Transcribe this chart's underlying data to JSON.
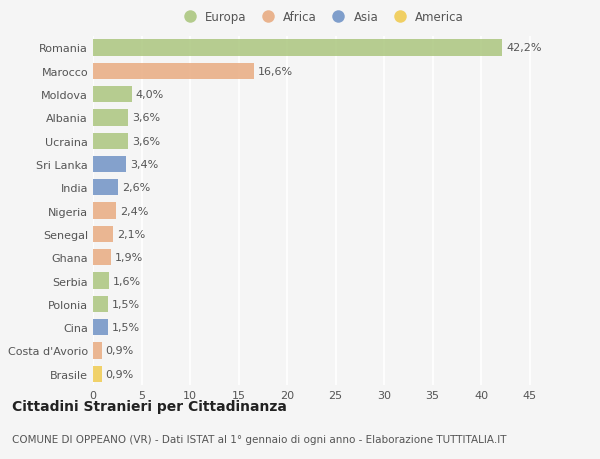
{
  "countries": [
    "Romania",
    "Marocco",
    "Moldova",
    "Albania",
    "Ucraina",
    "Sri Lanka",
    "India",
    "Nigeria",
    "Senegal",
    "Ghana",
    "Serbia",
    "Polonia",
    "Cina",
    "Costa d'Avorio",
    "Brasile"
  ],
  "values": [
    42.2,
    16.6,
    4.0,
    3.6,
    3.6,
    3.4,
    2.6,
    2.4,
    2.1,
    1.9,
    1.6,
    1.5,
    1.5,
    0.9,
    0.9
  ],
  "labels": [
    "42,2%",
    "16,6%",
    "4,0%",
    "3,6%",
    "3,6%",
    "3,4%",
    "2,6%",
    "2,4%",
    "2,1%",
    "1,9%",
    "1,6%",
    "1,5%",
    "1,5%",
    "0,9%",
    "0,9%"
  ],
  "continents": [
    "Europa",
    "Africa",
    "Europa",
    "Europa",
    "Europa",
    "Asia",
    "Asia",
    "Africa",
    "Africa",
    "Africa",
    "Europa",
    "Europa",
    "Asia",
    "Africa",
    "America"
  ],
  "continent_colors": {
    "Europa": "#a8c47a",
    "Africa": "#e8a87c",
    "Asia": "#6b8fc4",
    "America": "#f0c94a"
  },
  "legend_order": [
    "Europa",
    "Africa",
    "Asia",
    "America"
  ],
  "xlim": [
    0,
    47
  ],
  "xticks": [
    0,
    5,
    10,
    15,
    20,
    25,
    30,
    35,
    40,
    45
  ],
  "title": "Cittadini Stranieri per Cittadinanza",
  "subtitle": "COMUNE DI OPPEANO (VR) - Dati ISTAT al 1° gennaio di ogni anno - Elaborazione TUTTITALIA.IT",
  "background_color": "#f5f5f5",
  "grid_color": "#ffffff",
  "bar_height": 0.7,
  "title_fontsize": 10,
  "subtitle_fontsize": 7.5,
  "label_fontsize": 8,
  "tick_fontsize": 8,
  "legend_fontsize": 8.5
}
